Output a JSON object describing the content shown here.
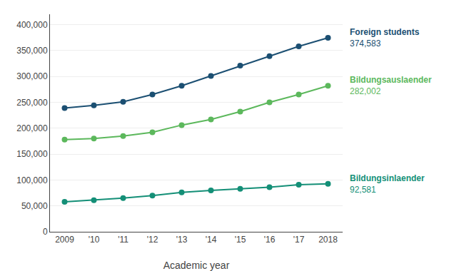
{
  "chart_data": {
    "type": "line",
    "x": [
      2009,
      2010,
      2011,
      2012,
      2013,
      2014,
      2015,
      2016,
      2017,
      2018
    ],
    "xlabel": "Academic year",
    "series": [
      {
        "name": "Foreign students",
        "color": "#1b4f72",
        "marker": "circle",
        "values": [
          239000,
          244000,
          251000,
          265000,
          282000,
          301000,
          321000,
          339000,
          358000,
          374583
        ]
      },
      {
        "name": "Bildungsauslaender",
        "color": "#5cb85c",
        "marker": "circle",
        "values": [
          178000,
          180000,
          185000,
          192000,
          206000,
          217000,
          232000,
          250000,
          265000,
          282002
        ]
      },
      {
        "name": "Bildungsinlaender",
        "color": "#148f77",
        "marker": "circle",
        "values": [
          58000,
          61000,
          65000,
          70000,
          76000,
          80000,
          83000,
          86000,
          91000,
          92581
        ]
      }
    ],
    "annotations": [
      "374,583",
      "282,002",
      "92,581"
    ],
    "xlim": [
      2008.5,
      2018.5
    ],
    "xticks": [
      2009,
      {
        "value": 2010,
        "label": "'10"
      },
      {
        "value": 2011,
        "label": "'11"
      },
      {
        "value": 2012,
        "label": "'12"
      },
      {
        "value": 2013,
        "label": "'13"
      },
      {
        "value": 2014,
        "label": "'14"
      },
      {
        "value": 2015,
        "label": "'15"
      },
      {
        "value": 2016,
        "label": "'16"
      },
      {
        "value": 2017,
        "label": "'17"
      },
      2018
    ],
    "ylim": [
      0,
      420000
    ],
    "yticks": [
      0,
      {
        "value": 50000,
        "label": "50,000"
      },
      {
        "value": 100000,
        "label": "100,000"
      },
      {
        "value": 150000,
        "label": "150,000"
      },
      {
        "value": 200000,
        "label": "200,000"
      },
      {
        "value": 250000,
        "label": "250,000"
      },
      {
        "value": 300000,
        "label": "300,000"
      },
      {
        "value": 350000,
        "label": "350,000"
      },
      {
        "value": 400000,
        "label": "400,000"
      }
    ],
    "grid": true
  }
}
